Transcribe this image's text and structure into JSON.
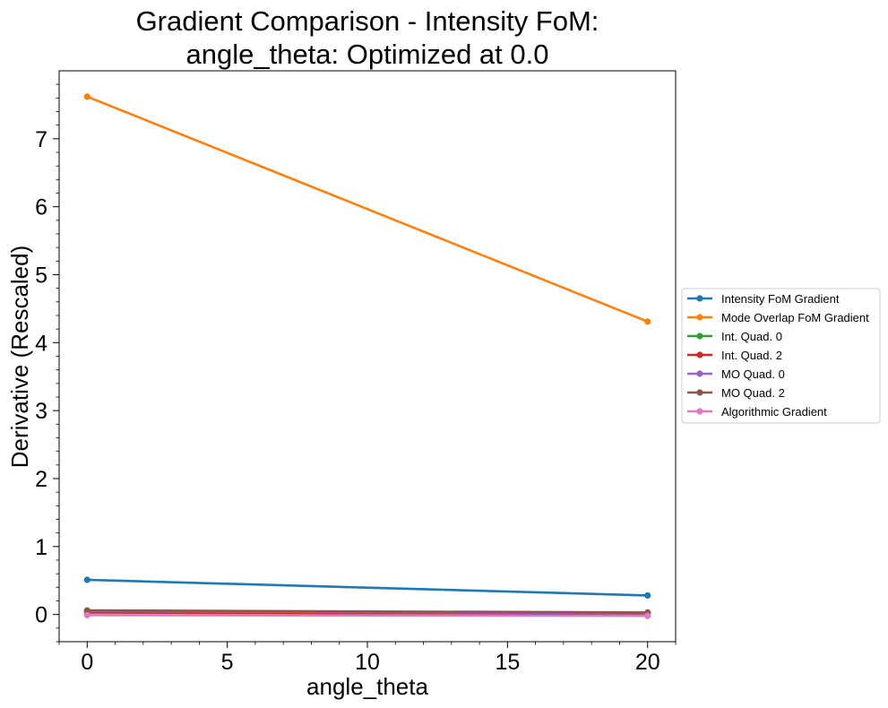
{
  "chart_data": {
    "type": "line",
    "title": [
      "Gradient Comparison - Intensity FoM:",
      "angle_theta: Optimized at 0.0"
    ],
    "xlabel": "angle_theta",
    "ylabel": "Derivative (Rescaled)",
    "x": [
      0,
      20
    ],
    "xlim": [
      -1,
      21
    ],
    "ylim": [
      -0.4,
      8.0
    ],
    "xticks": [
      0,
      5,
      10,
      15,
      20
    ],
    "yticks": [
      0,
      1,
      2,
      3,
      4,
      5,
      6,
      7
    ],
    "grid": false,
    "legend_position": "center-right-outside",
    "series": [
      {
        "name": "Intensity FoM Gradient",
        "color": "#1f77b4",
        "values": [
          0.51,
          0.28
        ]
      },
      {
        "name": "Mode Overlap FoM Gradient",
        "color": "#ff7f0e",
        "values": [
          7.62,
          4.31
        ]
      },
      {
        "name": "Int. Quad. 0",
        "color": "#2ca02c",
        "values": [
          0.03,
          0.01
        ]
      },
      {
        "name": "Int. Quad. 2",
        "color": "#d62728",
        "values": [
          0.03,
          0.01
        ]
      },
      {
        "name": "MO Quad. 0",
        "color": "#9467bd",
        "values": [
          0.05,
          0.02
        ]
      },
      {
        "name": "MO Quad. 2",
        "color": "#8c564b",
        "values": [
          0.06,
          0.03
        ]
      },
      {
        "name": "Algorithmic Gradient",
        "color": "#e377c2",
        "values": [
          -0.01,
          -0.02
        ]
      }
    ]
  }
}
